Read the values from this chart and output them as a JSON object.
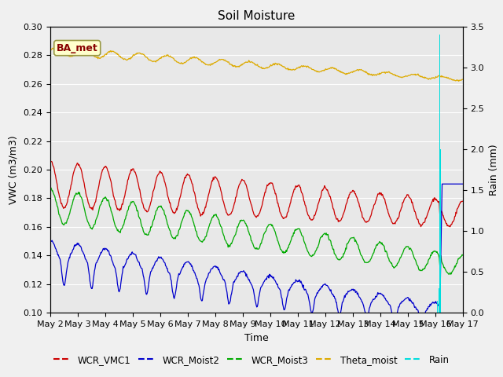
{
  "title": "Soil Moisture",
  "xlabel": "Time",
  "ylabel_left": "VWC (m3/m3)",
  "ylabel_right": "Rain (mm)",
  "ylim_left": [
    0.1,
    0.3
  ],
  "ylim_right": [
    0.0,
    3.5
  ],
  "yticks_left": [
    0.1,
    0.12,
    0.14,
    0.16,
    0.18,
    0.2,
    0.22,
    0.24,
    0.26,
    0.28,
    0.3
  ],
  "yticks_right": [
    0.0,
    0.5,
    1.0,
    1.5,
    2.0,
    2.5,
    3.0,
    3.5
  ],
  "xticklabels": [
    "May 2",
    "May 3",
    "May 4",
    "May 5",
    "May 6",
    "May 7",
    "May 8",
    "May 9",
    "May 10",
    "May 11",
    "May 12",
    "May 13",
    "May 14",
    "May 15",
    "May 16",
    "May 17"
  ],
  "colors": {
    "WCR_VMC1": "#cc0000",
    "WCR_Moist2": "#0000cc",
    "WCR_Moist3": "#00aa00",
    "Theta_moist": "#ddaa00",
    "Rain": "#00dddd"
  },
  "fig_facecolor": "#f0f0f0",
  "plot_facecolor": "#e8e8e8",
  "grid_color": "#ffffff",
  "annotation_box_color": "#ffffcc",
  "annotation_text": "BA_met",
  "annotation_text_color": "#880000",
  "annotation_border_color": "#999944"
}
